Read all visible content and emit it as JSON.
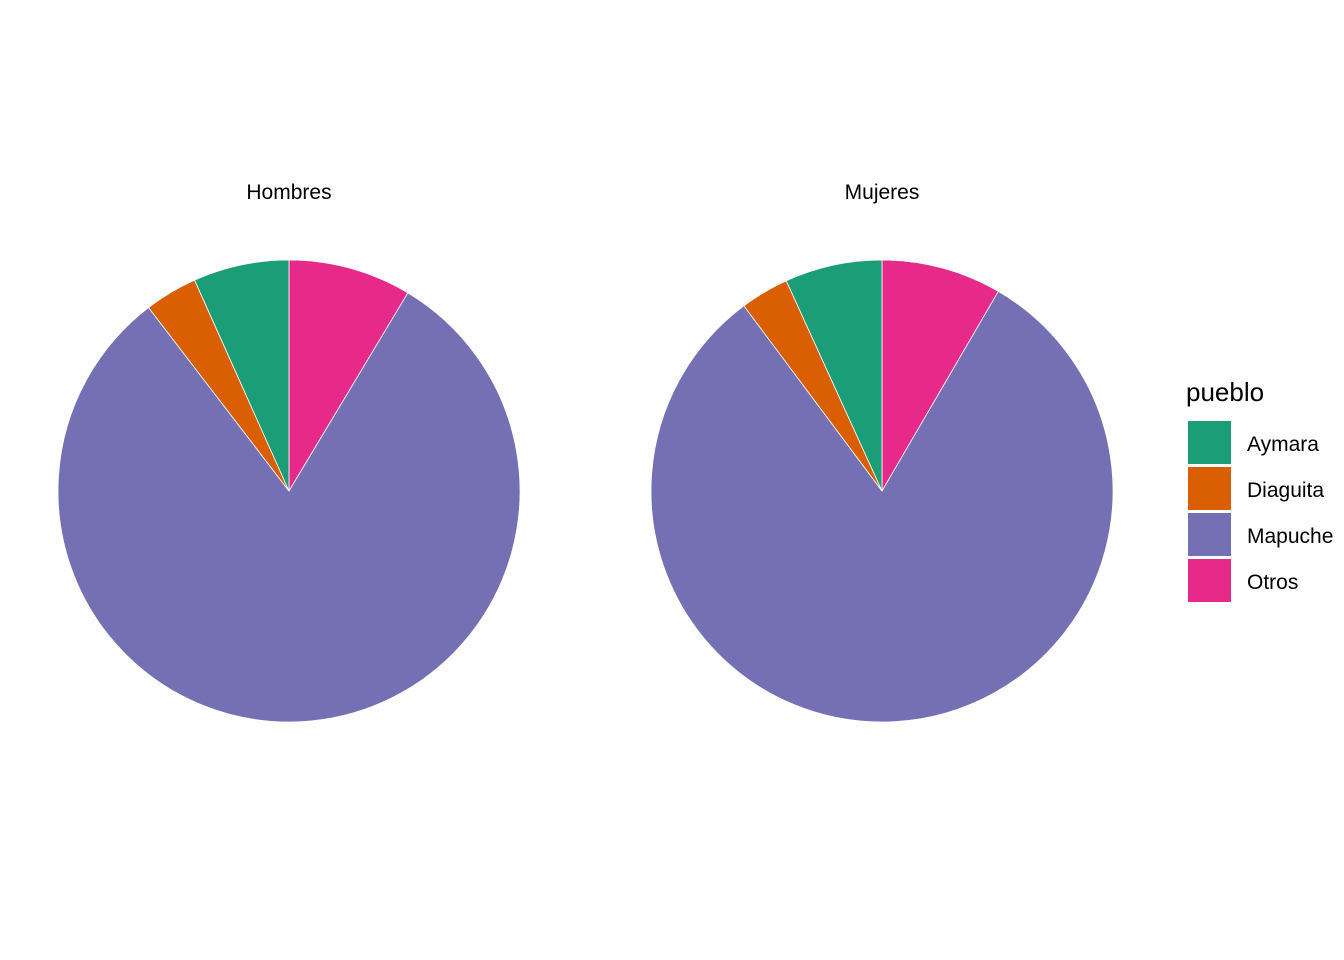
{
  "chart_data": [
    {
      "type": "pie",
      "facet_title": "Hombres",
      "slices": [
        {
          "category": "Otros",
          "value": 8.6
        },
        {
          "category": "Mapuche",
          "value": 81.0
        },
        {
          "category": "Diaguita",
          "value": 3.7
        },
        {
          "category": "Aymara",
          "value": 6.7
        }
      ]
    },
    {
      "type": "pie",
      "facet_title": "Mujeres",
      "slices": [
        {
          "category": "Otros",
          "value": 8.4
        },
        {
          "category": "Mapuche",
          "value": 81.4
        },
        {
          "category": "Diaguita",
          "value": 3.4
        },
        {
          "category": "Aymara",
          "value": 6.8
        }
      ]
    }
  ],
  "legend": {
    "title": "pueblo",
    "placement": "right",
    "items": [
      {
        "label": "Aymara",
        "color": "#1B9E77"
      },
      {
        "label": "Diaguita",
        "color": "#D95F02"
      },
      {
        "label": "Mapuche",
        "color": "#7570B3"
      },
      {
        "label": "Otros",
        "color": "#E7298A"
      }
    ]
  },
  "colors": {
    "Aymara": "#1B9E77",
    "Diaguita": "#D95F02",
    "Mapuche": "#7570B3",
    "Otros": "#E7298A"
  }
}
